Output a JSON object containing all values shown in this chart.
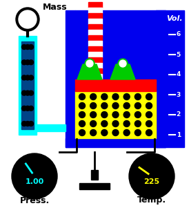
{
  "bg_color": "#ffffff",
  "cylinder_blue": "#0000ee",
  "cylinder_dark_blue": "#0000bb",
  "gas_yellow": "#ffff00",
  "piston_red": "#ff0000",
  "weight_green": "#00cc00",
  "weight_green_light": "#44ff44",
  "rod_red": "#ff0000",
  "rod_white": "#ffffff",
  "gauge_black": "#000000",
  "gauge_cyan": "#00ffff",
  "gauge_yellow": "#ffff00",
  "mass_label": "Mass",
  "press_label": "Press.",
  "temp_label": "Temp.",
  "vol_label": "Vol.",
  "press_value": "1.00",
  "temp_value": "225",
  "wall_cyan": "#00ffff",
  "dots_black": "#000000",
  "white": "#ffffff",
  "black": "#000000"
}
